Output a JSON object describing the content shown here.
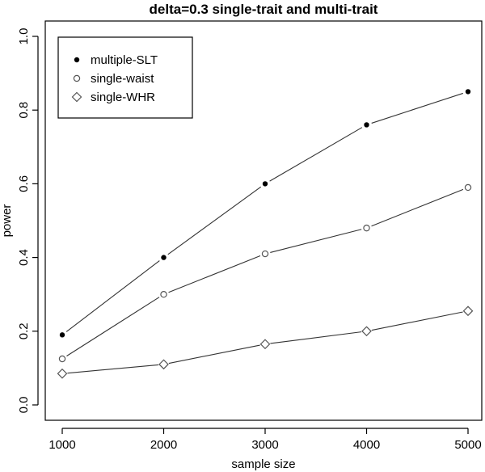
{
  "chart_data": {
    "type": "line",
    "title": "delta=0.3 single-trait and multi-trait",
    "xlabel": "sample size",
    "ylabel": "power",
    "x": [
      1000,
      2000,
      3000,
      4000,
      5000
    ],
    "xlim": [
      1000,
      5000
    ],
    "ylim": [
      0.0,
      1.0
    ],
    "xticks": [
      "1000",
      "2000",
      "3000",
      "4000",
      "5000"
    ],
    "yticks": [
      "0.0",
      "0.2",
      "0.4",
      "0.6",
      "0.8",
      "1.0"
    ],
    "grid": false,
    "legend_position": "top-left",
    "series": [
      {
        "name": "multiple-SLT",
        "marker": "filled-circle",
        "values": [
          0.19,
          0.4,
          0.6,
          0.76,
          0.85
        ]
      },
      {
        "name": "single-waist",
        "marker": "open-circle",
        "values": [
          0.125,
          0.3,
          0.41,
          0.48,
          0.59
        ]
      },
      {
        "name": "single-WHR",
        "marker": "open-diamond",
        "values": [
          0.085,
          0.11,
          0.165,
          0.2,
          0.255
        ]
      }
    ]
  }
}
